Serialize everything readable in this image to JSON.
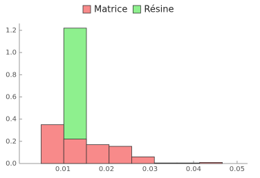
{
  "chart_data": {
    "type": "histogram",
    "bins": [
      0.005,
      0.0102,
      0.0154,
      0.0206,
      0.0258,
      0.031,
      0.0362,
      0.0414,
      0.0466
    ],
    "series": [
      {
        "name": "Résine",
        "color": "#8ef08e",
        "values": [
          0,
          1.22,
          0,
          0,
          0,
          0,
          0,
          0
        ]
      },
      {
        "name": "Matrice",
        "color": "#f88a8a",
        "values": [
          0.35,
          0.22,
          0.17,
          0.155,
          0.06,
          0.005,
          0.005,
          0.01
        ]
      }
    ],
    "legend_order": [
      1,
      0
    ],
    "xlim": [
      0,
      0.0524
    ],
    "ylim": [
      0,
      1.262
    ],
    "xticks": [
      0.01,
      0.02,
      0.03,
      0.04,
      0.05
    ],
    "yticks": [
      {
        "value": 0,
        "label": "0.0"
      },
      0.2,
      0.4,
      0.6,
      0.8,
      {
        "value": 1,
        "label": "1.0"
      },
      1.2
    ]
  }
}
